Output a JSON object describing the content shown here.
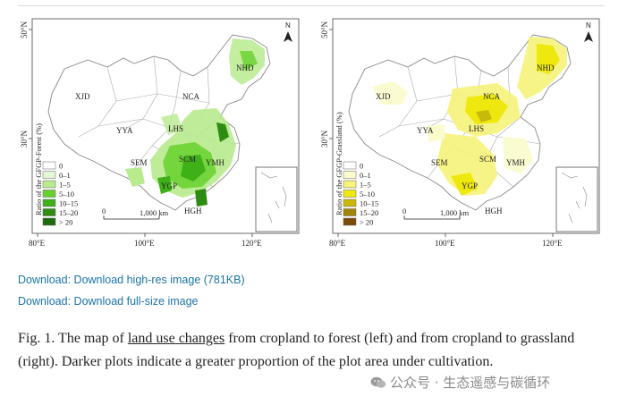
{
  "figure": {
    "lat_label": "30°N",
    "lat_label_top": "50°N",
    "lon_labels": [
      "80°E",
      "100°E",
      "120°E"
    ],
    "scale_label": "1,000 km",
    "north_label": "N",
    "regions": [
      "NHD",
      "XJD",
      "NCA",
      "LHS",
      "YYA",
      "SCM",
      "SEM",
      "YMH",
      "YGP",
      "HGH"
    ],
    "panels": [
      {
        "id": "forest",
        "ylabel": "Ratio of the GFGP-Forest (%)",
        "legend": [
          "0",
          "0–1",
          "1–5",
          "5–10",
          "10–15",
          "15–20",
          "> 20"
        ],
        "colors": [
          "#ffffff",
          "#e4f8d6",
          "#b8ea8e",
          "#66d12c",
          "#3fb018",
          "#2f8c12",
          "#1f6a0c"
        ]
      },
      {
        "id": "grassland",
        "ylabel": "Ratio of the GFGP-Grassland (%)",
        "legend": [
          "0",
          "0–1",
          "1–5",
          "5–10",
          "10–15",
          "15–20",
          "> 20"
        ],
        "colors": [
          "#ffffff",
          "#fbfbcc",
          "#f6f37a",
          "#eee80e",
          "#c9b90a",
          "#9f8508",
          "#7a4c06"
        ]
      }
    ]
  },
  "downloads": [
    "Download: Download high-res image (781KB)",
    "Download: Download full-size image"
  ],
  "caption": {
    "prefix": "Fig. 1. The map of ",
    "link": "land use changes",
    "suffix": " from cropland to forest (left) and from cropland to grassland (right). Darker plots indicate a greater proportion of the plot area under cultivation."
  },
  "watermark": "公众号 · 生态遥感与碳循环"
}
